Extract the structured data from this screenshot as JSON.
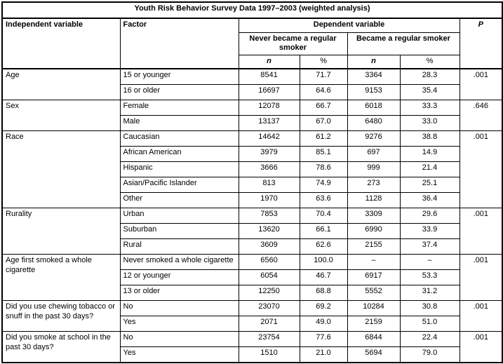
{
  "page": {
    "background": "#ffffff",
    "text_color": "#000000",
    "border_color": "#000000"
  },
  "table": {
    "title": "Youth Risk Behavior Survey Data 1997–2003 (weighted analysis)",
    "headers": {
      "independent_variable": "Independent variable",
      "factor": "Factor",
      "dependent_variable": "Dependent variable",
      "never_group": "Never became a regular smoker",
      "became_group": "Became a regular smoker",
      "n": "n",
      "percent": "%",
      "p": "P"
    },
    "groups": [
      {
        "variable": "Age",
        "p": ".001",
        "rows": [
          {
            "factor": "15 or younger",
            "never_n": "8541",
            "never_pct": "71.7",
            "became_n": "3364",
            "became_pct": "28.3"
          },
          {
            "factor": "16 or older",
            "never_n": "16697",
            "never_pct": "64.6",
            "became_n": "9153",
            "became_pct": "35.4"
          }
        ]
      },
      {
        "variable": "Sex",
        "p": ".646",
        "rows": [
          {
            "factor": "Female",
            "never_n": "12078",
            "never_pct": "66.7",
            "became_n": "6018",
            "became_pct": "33.3"
          },
          {
            "factor": "Male",
            "never_n": "13137",
            "never_pct": "67.0",
            "became_n": "6480",
            "became_pct": "33.0"
          }
        ]
      },
      {
        "variable": "Race",
        "p": ".001",
        "rows": [
          {
            "factor": "Caucasian",
            "never_n": "14642",
            "never_pct": "61.2",
            "became_n": "9276",
            "became_pct": "38.8"
          },
          {
            "factor": "African American",
            "never_n": "3979",
            "never_pct": "85.1",
            "became_n": "697",
            "became_pct": "14.9"
          },
          {
            "factor": "Hispanic",
            "never_n": "3666",
            "never_pct": "78.6",
            "became_n": "999",
            "became_pct": "21.4"
          },
          {
            "factor": "Asian/Pacific Islander",
            "never_n": "813",
            "never_pct": "74.9",
            "became_n": "273",
            "became_pct": "25.1"
          },
          {
            "factor": "Other",
            "never_n": "1970",
            "never_pct": "63.6",
            "became_n": "1128",
            "became_pct": "36.4"
          }
        ]
      },
      {
        "variable": "Rurality",
        "p": ".001",
        "rows": [
          {
            "factor": "Urban",
            "never_n": "7853",
            "never_pct": "70.4",
            "became_n": "3309",
            "became_pct": "29.6"
          },
          {
            "factor": "Suburban",
            "never_n": "13620",
            "never_pct": "66.1",
            "became_n": "6990",
            "became_pct": "33.9"
          },
          {
            "factor": "Rural",
            "never_n": "3609",
            "never_pct": "62.6",
            "became_n": "2155",
            "became_pct": "37.4"
          }
        ]
      },
      {
        "variable": "Age first smoked a whole cigarette",
        "p": ".001",
        "rows": [
          {
            "factor": "Never smoked a whole cigarette",
            "never_n": "6560",
            "never_pct": "100.0",
            "became_n": "–",
            "became_pct": "–"
          },
          {
            "factor": "12 or younger",
            "never_n": "6054",
            "never_pct": "46.7",
            "became_n": "6917",
            "became_pct": "53.3"
          },
          {
            "factor": "13 or older",
            "never_n": "12250",
            "never_pct": "68.8",
            "became_n": "5552",
            "became_pct": "31.2"
          }
        ]
      },
      {
        "variable": "Did you use chewing tobacco or snuff in the past 30 days?",
        "p": ".001",
        "rows": [
          {
            "factor": "No",
            "never_n": "23070",
            "never_pct": "69.2",
            "became_n": "10284",
            "became_pct": "30.8"
          },
          {
            "factor": "Yes",
            "never_n": "2071",
            "never_pct": "49.0",
            "became_n": "2159",
            "became_pct": "51.0"
          }
        ]
      },
      {
        "variable": "Did you smoke at school in the past 30 days?",
        "p": ".001",
        "rows": [
          {
            "factor": "No",
            "never_n": "23754",
            "never_pct": "77.6",
            "became_n": "6844",
            "became_pct": "22.4"
          },
          {
            "factor": "Yes",
            "never_n": "1510",
            "never_pct": "21.0",
            "became_n": "5694",
            "became_pct": "79.0"
          }
        ]
      }
    ]
  }
}
